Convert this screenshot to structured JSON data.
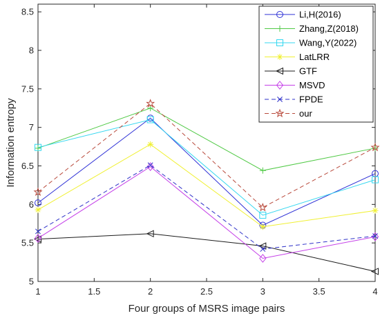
{
  "chart_data": {
    "type": "line",
    "xlabel": "Four groups of MSRS image pairs",
    "ylabel": "Information entropy",
    "x": [
      1,
      2,
      3,
      4
    ],
    "xlim": [
      1,
      4
    ],
    "ylim": [
      5,
      8.6
    ],
    "xticks": [
      1,
      1.5,
      2,
      2.5,
      3,
      3.5,
      4
    ],
    "xtick_labels": [
      "1",
      "1.5",
      "2",
      "2.5",
      "3",
      "3.5",
      "4"
    ],
    "yticks": [
      5,
      5.5,
      6,
      6.5,
      7,
      7.5,
      8,
      8.5
    ],
    "ytick_labels": [
      "5",
      "5.5",
      "6",
      "6.5",
      "7",
      "7.5",
      "8",
      "8.5"
    ],
    "grid": false,
    "legend_position": "top-right",
    "series": [
      {
        "name": "Li,H(2016)",
        "values": [
          6.02,
          7.12,
          5.73,
          6.4
        ],
        "color": "#2e31d6",
        "marker": "circle",
        "dash": "solid"
      },
      {
        "name": "Zhang,Z(2018)",
        "values": [
          6.73,
          7.25,
          6.44,
          6.73
        ],
        "color": "#4fc944",
        "marker": "plus",
        "dash": "solid"
      },
      {
        "name": "Wang,Y(2022)",
        "values": [
          6.74,
          7.1,
          5.86,
          6.32
        ],
        "color": "#33d7f0",
        "marker": "square",
        "dash": "solid"
      },
      {
        "name": "LatLRR",
        "values": [
          5.93,
          6.78,
          5.71,
          5.92
        ],
        "color": "#f0f030",
        "marker": "asterisk",
        "dash": "solid"
      },
      {
        "name": "GTF",
        "values": [
          5.55,
          5.62,
          5.46,
          5.13
        ],
        "color": "#1a1a1a",
        "marker": "triangle-left",
        "dash": "solid"
      },
      {
        "name": "MSVD",
        "values": [
          5.56,
          6.49,
          5.3,
          5.58
        ],
        "color": "#c43ee8",
        "marker": "diamond",
        "dash": "solid"
      },
      {
        "name": "FPDE",
        "values": [
          5.65,
          6.51,
          5.42,
          5.59
        ],
        "color": "#2c2fc8",
        "marker": "x",
        "dash": "dashed"
      },
      {
        "name": "our",
        "values": [
          6.16,
          7.31,
          5.96,
          6.74
        ],
        "color": "#b8483a",
        "marker": "star",
        "dash": "dashed"
      }
    ]
  }
}
